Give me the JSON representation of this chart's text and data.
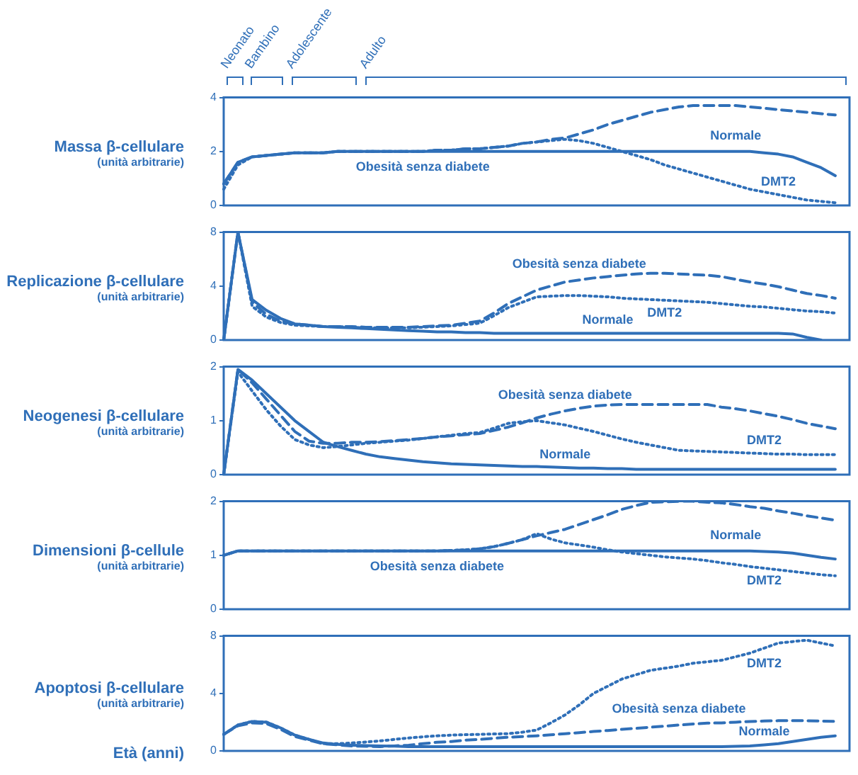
{
  "chart_data": [
    {
      "type": "line",
      "ylabel": "Massa β-cellulare\n(unità arbitrarie)",
      "annotations": [
        "Neonato",
        "Bambino",
        "Adolescente",
        "Adulto"
      ],
      "categories": [
        null,
        null,
        null,
        null,
        null,
        null,
        null,
        null,
        null,
        null,
        null,
        null,
        null,
        null,
        null,
        null,
        null,
        null,
        null,
        null,
        null,
        null,
        null,
        null,
        null,
        null,
        null,
        null,
        null,
        null,
        null,
        null,
        null,
        null,
        null,
        null,
        null,
        null,
        null,
        null,
        null,
        null,
        null,
        null,
        null
      ],
      "ylim": [
        0,
        4
      ],
      "yticks": [
        0,
        2,
        4
      ],
      "tick_labels": "y",
      "series": [
        {
          "name": "Normale",
          "color": "#2f6fb8",
          "line_style": "solid",
          "values": [
            0.8,
            1.6,
            1.8,
            1.85,
            1.9,
            1.95,
            1.95,
            1.95,
            2.0,
            2.0,
            2.0,
            2.0,
            2.0,
            2.0,
            2.0,
            2.0,
            2.0,
            2.0,
            2.0,
            2.0,
            2.0,
            2.0,
            2.0,
            2.0,
            2.0,
            2.0,
            2.0,
            2.0,
            2.0,
            2.0,
            2.0,
            2.0,
            2.0,
            2.0,
            2.0,
            2.0,
            2.0,
            2.0,
            1.95,
            1.9,
            1.8,
            1.6,
            1.4,
            1.1,
            null
          ]
        },
        {
          "name": "Obesità senza diabete",
          "color": "#2f6fb8",
          "line_style": "dashed",
          "values": [
            0.8,
            1.6,
            1.8,
            1.85,
            1.9,
            1.95,
            1.95,
            1.95,
            2.0,
            2.0,
            2.0,
            2.0,
            2.0,
            2.0,
            2.0,
            2.05,
            2.05,
            2.1,
            2.1,
            2.15,
            2.2,
            2.3,
            2.35,
            2.45,
            2.5,
            2.65,
            2.8,
            3.0,
            3.15,
            3.3,
            3.45,
            3.55,
            3.65,
            3.7,
            3.7,
            3.7,
            3.7,
            3.65,
            3.6,
            3.55,
            3.5,
            3.45,
            3.4,
            3.35,
            null
          ]
        },
        {
          "name": "DMT2",
          "color": "#2f6fb8",
          "line_style": "dotted",
          "values": [
            0.6,
            1.5,
            1.8,
            1.85,
            1.9,
            1.95,
            1.95,
            1.95,
            2.0,
            2.0,
            2.0,
            2.0,
            2.0,
            2.0,
            2.0,
            2.05,
            2.05,
            2.1,
            2.1,
            2.15,
            2.2,
            2.3,
            2.35,
            2.4,
            2.45,
            2.4,
            2.3,
            2.15,
            2.0,
            1.85,
            1.7,
            1.5,
            1.35,
            1.2,
            1.05,
            0.9,
            0.75,
            0.6,
            0.5,
            0.4,
            0.3,
            0.2,
            0.15,
            0.1,
            null
          ]
        }
      ]
    },
    {
      "type": "line",
      "ylabel": "Replicazione β-cellulare\n(unità arbitrarie)",
      "categories": [
        null,
        null,
        null,
        null,
        null,
        null,
        null,
        null,
        null,
        null,
        null,
        null,
        null,
        null,
        null,
        null,
        null,
        null,
        null,
        null,
        null,
        null,
        null,
        null,
        null,
        null,
        null,
        null,
        null,
        null,
        null,
        null,
        null,
        null,
        null,
        null,
        null,
        null,
        null,
        null,
        null,
        null,
        null,
        null,
        null
      ],
      "ylim": [
        0,
        8
      ],
      "yticks": [
        0,
        4,
        8
      ],
      "tick_labels": "y",
      "series": [
        {
          "name": "Normale",
          "color": "#2f6fb8",
          "line_style": "solid",
          "values": [
            0,
            8,
            3.0,
            2.2,
            1.6,
            1.2,
            1.1,
            1.0,
            0.95,
            0.9,
            0.85,
            0.8,
            0.75,
            0.7,
            0.65,
            0.6,
            0.6,
            0.55,
            0.55,
            0.5,
            0.5,
            0.5,
            0.5,
            0.5,
            0.5,
            0.5,
            0.5,
            0.5,
            0.5,
            0.5,
            0.5,
            0.5,
            0.5,
            0.5,
            0.5,
            0.5,
            0.5,
            0.5,
            0.5,
            0.5,
            0.45,
            0.2,
            0,
            null,
            null
          ]
        },
        {
          "name": "Obesità senza diabete",
          "color": "#2f6fb8",
          "line_style": "dashed",
          "values": [
            0,
            8,
            2.8,
            1.9,
            1.4,
            1.2,
            1.1,
            1.0,
            1.0,
            1.0,
            0.95,
            0.95,
            0.95,
            0.95,
            1.0,
            1.05,
            1.1,
            1.25,
            1.4,
            2.0,
            2.7,
            3.2,
            3.7,
            4.0,
            4.3,
            4.45,
            4.6,
            4.7,
            4.8,
            4.9,
            4.95,
            4.95,
            4.9,
            4.85,
            4.8,
            4.7,
            4.5,
            4.3,
            4.15,
            3.95,
            3.7,
            3.45,
            3.3,
            3.1,
            null
          ]
        },
        {
          "name": "DMT2",
          "color": "#2f6fb8",
          "line_style": "dotted",
          "values": [
            0,
            8,
            2.5,
            1.7,
            1.3,
            1.1,
            1.05,
            1.0,
            1.0,
            0.95,
            0.9,
            0.9,
            0.9,
            0.9,
            0.95,
            1.0,
            1.05,
            1.15,
            1.25,
            1.8,
            2.4,
            2.8,
            3.2,
            3.25,
            3.3,
            3.3,
            3.25,
            3.2,
            3.1,
            3.05,
            3.0,
            2.95,
            2.9,
            2.85,
            2.8,
            2.7,
            2.6,
            2.5,
            2.45,
            2.35,
            2.25,
            2.15,
            2.1,
            2.0,
            null
          ]
        }
      ]
    },
    {
      "type": "line",
      "ylabel": "Neogenesi β-cellulare\n(unità arbitrarie)",
      "categories": [
        null,
        null,
        null,
        null,
        null,
        null,
        null,
        null,
        null,
        null,
        null,
        null,
        null,
        null,
        null,
        null,
        null,
        null,
        null,
        null,
        null,
        null,
        null,
        null,
        null,
        null,
        null,
        null,
        null,
        null,
        null,
        null,
        null,
        null,
        null,
        null,
        null,
        null,
        null,
        null,
        null,
        null,
        null,
        null,
        null
      ],
      "ylim": [
        0,
        2
      ],
      "yticks": [
        0,
        1,
        2
      ],
      "tick_labels": "y",
      "series": [
        {
          "name": "Normale",
          "color": "#2f6fb8",
          "line_style": "solid",
          "values": [
            0,
            1.95,
            1.75,
            1.5,
            1.25,
            1.0,
            0.8,
            0.6,
            0.52,
            0.45,
            0.38,
            0.33,
            0.3,
            0.27,
            0.24,
            0.22,
            0.2,
            0.19,
            0.18,
            0.17,
            0.16,
            0.15,
            0.15,
            0.14,
            0.13,
            0.12,
            0.12,
            0.11,
            0.11,
            0.1,
            0.1,
            0.1,
            0.1,
            0.1,
            0.1,
            0.1,
            0.1,
            0.1,
            0.1,
            0.1,
            0.1,
            0.1,
            0.1,
            0.1,
            null
          ]
        },
        {
          "name": "Obesità senza diabete",
          "color": "#2f6fb8",
          "line_style": "dashed",
          "values": [
            0,
            1.95,
            1.7,
            1.4,
            1.1,
            0.8,
            0.62,
            0.58,
            0.58,
            0.6,
            0.6,
            0.61,
            0.63,
            0.65,
            0.67,
            0.7,
            0.72,
            0.74,
            0.76,
            0.82,
            0.88,
            0.96,
            1.05,
            1.12,
            1.18,
            1.23,
            1.27,
            1.29,
            1.3,
            1.3,
            1.3,
            1.3,
            1.3,
            1.3,
            1.3,
            1.25,
            1.22,
            1.18,
            1.13,
            1.08,
            1.02,
            0.95,
            0.9,
            0.85,
            null
          ]
        },
        {
          "name": "DMT2",
          "color": "#2f6fb8",
          "line_style": "dotted",
          "values": [
            0,
            1.9,
            1.55,
            1.2,
            0.9,
            0.65,
            0.55,
            0.5,
            0.52,
            0.55,
            0.58,
            0.6,
            0.62,
            0.64,
            0.67,
            0.7,
            0.73,
            0.76,
            0.78,
            0.86,
            0.95,
            0.98,
            1.0,
            0.96,
            0.92,
            0.86,
            0.8,
            0.73,
            0.66,
            0.6,
            0.55,
            0.5,
            0.45,
            0.44,
            0.43,
            0.42,
            0.41,
            0.4,
            0.39,
            0.38,
            0.38,
            0.37,
            0.37,
            0.37,
            null
          ]
        }
      ]
    },
    {
      "type": "line",
      "ylabel": "Dimensioni β-cellule\n(unità arbitrarie)",
      "categories": [
        null,
        null,
        null,
        null,
        null,
        null,
        null,
        null,
        null,
        null,
        null,
        null,
        null,
        null,
        null,
        null,
        null,
        null,
        null,
        null,
        null,
        null,
        null,
        null,
        null,
        null,
        null,
        null,
        null,
        null,
        null,
        null,
        null,
        null,
        null,
        null,
        null,
        null,
        null,
        null,
        null,
        null,
        null,
        null,
        null
      ],
      "ylim": [
        0,
        2
      ],
      "yticks": [
        0,
        1,
        2
      ],
      "tick_labels": "y",
      "series": [
        {
          "name": "Normale",
          "color": "#2f6fb8",
          "line_style": "solid",
          "values": [
            1.0,
            1.08,
            1.08,
            1.08,
            1.08,
            1.08,
            1.08,
            1.08,
            1.08,
            1.08,
            1.08,
            1.08,
            1.08,
            1.08,
            1.08,
            1.08,
            1.08,
            1.08,
            1.08,
            1.08,
            1.08,
            1.08,
            1.08,
            1.08,
            1.08,
            1.08,
            1.08,
            1.08,
            1.08,
            1.08,
            1.08,
            1.08,
            1.08,
            1.08,
            1.08,
            1.08,
            1.08,
            1.08,
            1.07,
            1.06,
            1.04,
            1.0,
            0.96,
            0.93,
            null
          ]
        },
        {
          "name": "Obesità senza diabete",
          "color": "#2f6fb8",
          "line_style": "dashed",
          "values": [
            1.0,
            1.08,
            1.08,
            1.08,
            1.08,
            1.08,
            1.08,
            1.08,
            1.08,
            1.08,
            1.08,
            1.08,
            1.08,
            1.08,
            1.08,
            1.08,
            1.09,
            1.1,
            1.12,
            1.16,
            1.22,
            1.29,
            1.36,
            1.42,
            1.48,
            1.57,
            1.66,
            1.75,
            1.85,
            1.92,
            1.98,
            1.99,
            2.0,
            2.0,
            1.98,
            1.97,
            1.94,
            1.9,
            1.87,
            1.82,
            1.78,
            1.73,
            1.69,
            1.65,
            null
          ]
        },
        {
          "name": "DMT2",
          "color": "#2f6fb8",
          "line_style": "dotted",
          "values": [
            1.0,
            1.08,
            1.08,
            1.08,
            1.08,
            1.08,
            1.08,
            1.08,
            1.08,
            1.08,
            1.08,
            1.08,
            1.08,
            1.08,
            1.08,
            1.08,
            1.09,
            1.1,
            1.12,
            1.16,
            1.22,
            1.29,
            1.4,
            1.3,
            1.23,
            1.19,
            1.15,
            1.1,
            1.06,
            1.03,
            1.0,
            0.97,
            0.95,
            0.93,
            0.9,
            0.86,
            0.83,
            0.79,
            0.76,
            0.73,
            0.7,
            0.67,
            0.64,
            0.62,
            null
          ]
        }
      ]
    },
    {
      "type": "line",
      "ylabel": "Apoptosi β-cellulare\n(unità arbitrarie)",
      "xlabel": "Età (anni)",
      "categories": [
        null,
        null,
        null,
        null,
        null,
        null,
        null,
        null,
        null,
        null,
        null,
        null,
        null,
        null,
        null,
        null,
        null,
        null,
        null,
        null,
        null,
        null,
        null,
        null,
        null,
        null,
        null,
        null,
        null,
        null,
        null,
        null,
        null,
        null,
        null,
        null,
        null,
        null,
        null,
        null,
        null,
        null,
        null,
        null,
        null
      ],
      "ylim": [
        0,
        8
      ],
      "yticks": [
        0,
        4,
        8
      ],
      "tick_labels": "y",
      "series": [
        {
          "name": "Normale",
          "color": "#2f6fb8",
          "line_style": "solid",
          "values": [
            1.15,
            1.8,
            2.05,
            2.0,
            1.6,
            1.1,
            0.8,
            0.55,
            0.45,
            0.4,
            0.37,
            0.35,
            0.33,
            0.3,
            0.3,
            0.3,
            0.3,
            0.3,
            0.3,
            0.3,
            0.3,
            0.3,
            0.3,
            0.3,
            0.3,
            0.3,
            0.3,
            0.3,
            0.3,
            0.3,
            0.3,
            0.3,
            0.3,
            0.3,
            0.3,
            0.3,
            0.32,
            0.35,
            0.42,
            0.5,
            0.65,
            0.8,
            0.95,
            1.05,
            null
          ]
        },
        {
          "name": "Obesità senza diabete",
          "color": "#2f6fb8",
          "line_style": "dashed",
          "values": [
            1.15,
            1.75,
            1.95,
            1.9,
            1.5,
            1.0,
            0.75,
            0.5,
            0.42,
            0.35,
            0.32,
            0.3,
            0.35,
            0.4,
            0.5,
            0.6,
            0.65,
            0.75,
            0.8,
            0.88,
            0.95,
            1.0,
            1.05,
            1.12,
            1.2,
            1.27,
            1.35,
            1.42,
            1.5,
            1.57,
            1.65,
            1.72,
            1.8,
            1.87,
            1.93,
            1.95,
            2.0,
            2.05,
            2.08,
            2.1,
            2.1,
            2.1,
            2.08,
            2.05,
            null
          ]
        },
        {
          "name": "DMT2",
          "color": "#2f6fb8",
          "line_style": "dotted",
          "values": [
            1.15,
            1.8,
            2.05,
            2.0,
            1.6,
            1.1,
            0.8,
            0.5,
            0.5,
            0.55,
            0.62,
            0.7,
            0.8,
            0.9,
            0.98,
            1.05,
            1.1,
            1.13,
            1.15,
            1.18,
            1.2,
            1.3,
            1.45,
            1.95,
            2.5,
            3.2,
            4.0,
            4.5,
            5.0,
            5.3,
            5.6,
            5.75,
            5.9,
            6.1,
            6.2,
            6.3,
            6.55,
            6.8,
            7.15,
            7.5,
            7.6,
            7.7,
            7.5,
            7.3,
            null
          ]
        }
      ]
    }
  ]
}
